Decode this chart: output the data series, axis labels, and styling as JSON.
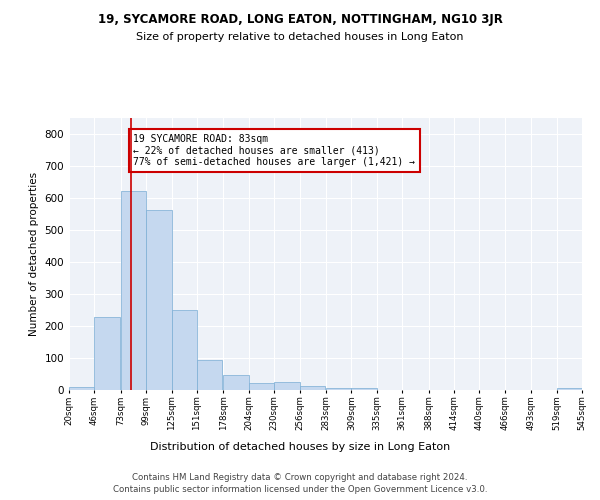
{
  "title": "19, SYCAMORE ROAD, LONG EATON, NOTTINGHAM, NG10 3JR",
  "subtitle": "Size of property relative to detached houses in Long Eaton",
  "xlabel": "Distribution of detached houses by size in Long Eaton",
  "ylabel": "Number of detached properties",
  "bar_color": "#c5d8ef",
  "bar_edge_color": "#7aadd4",
  "property_line_x": 83,
  "annotation_text": "19 SYCAMORE ROAD: 83sqm\n← 22% of detached houses are smaller (413)\n77% of semi-detached houses are larger (1,421) →",
  "annotation_box_color": "#ffffff",
  "annotation_box_edge": "#cc0000",
  "line_color": "#cc0000",
  "bins": [
    20,
    46,
    73,
    99,
    125,
    151,
    178,
    204,
    230,
    256,
    283,
    309,
    335,
    361,
    388,
    414,
    440,
    466,
    493,
    519,
    545
  ],
  "bar_heights": [
    10,
    228,
    621,
    563,
    251,
    95,
    48,
    22,
    24,
    13,
    5,
    5,
    0,
    0,
    0,
    0,
    0,
    0,
    0,
    7
  ],
  "ylim": [
    0,
    850
  ],
  "yticks": [
    0,
    100,
    200,
    300,
    400,
    500,
    600,
    700,
    800
  ],
  "footer_line1": "Contains HM Land Registry data © Crown copyright and database right 2024.",
  "footer_line2": "Contains public sector information licensed under the Open Government Licence v3.0.",
  "background_color": "#eef2f8",
  "grid_color": "#ffffff",
  "fig_bg": "#ffffff"
}
